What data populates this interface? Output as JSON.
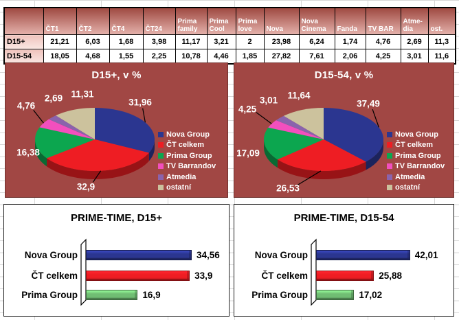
{
  "table": {
    "corner_label": "",
    "columns": [
      "ČT1",
      "ČT2",
      "ČT4",
      "ČT24",
      "Prima family",
      "Prima Cool",
      "Prima love",
      "Nova",
      "Nova Cinema",
      "Fanda",
      "TV BAR",
      "Atme-dia",
      "ost."
    ],
    "rows": [
      {
        "label": "D15+",
        "values": [
          "21,21",
          "6,03",
          "1,68",
          "3,98",
          "11,17",
          "3,21",
          "2",
          "23,98",
          "6,24",
          "1,74",
          "4,76",
          "2,69",
          "11,3"
        ]
      },
      {
        "label": "D15-54",
        "values": [
          "18,05",
          "4,68",
          "1,55",
          "2,25",
          "10,78",
          "4,46",
          "1,85",
          "27,82",
          "7,61",
          "2,06",
          "4,25",
          "3,01",
          "11,6"
        ]
      }
    ]
  },
  "colors": {
    "nova_group": "#2B3690",
    "ct_celkem": "#EE1D23",
    "prima_group_pie": "#0CA64F",
    "prima_group_bar": "#70BE73",
    "tv_barrandov": "#F24FBE",
    "atmedia": "#8A63AC",
    "ostatni": "#CCC29D",
    "pie_panel_bg": "#A14744",
    "table_header_top": "#9F4A42",
    "table_header_bottom": "#E4B1AB"
  },
  "chart_data": [
    {
      "type": "pie",
      "title": "D15+, v %",
      "legend_position": "right",
      "labels": [
        "Nova Group",
        "ČT celkem",
        "Prima Group",
        "TV Barrandov",
        "Atmedia",
        "ostatní"
      ],
      "values": [
        31.96,
        32.9,
        16.38,
        4.76,
        2.69,
        11.31
      ],
      "value_labels": [
        "31,96",
        "32,9",
        "16,38",
        "4,76",
        "2,69",
        "11,31"
      ]
    },
    {
      "type": "pie",
      "title": "D15-54, v %",
      "legend_position": "right",
      "labels": [
        "Nova Group",
        "ČT celkem",
        "Prima Group",
        "TV Barrandov",
        "Atmedia",
        "ostatní"
      ],
      "values": [
        37.49,
        26.53,
        17.09,
        4.25,
        3.01,
        11.64
      ],
      "value_labels": [
        "37,49",
        "26,53",
        "17,09",
        "4,25",
        "3,01",
        "11,64"
      ]
    },
    {
      "type": "bar",
      "title": "PRIME-TIME, D15+",
      "orientation": "horizontal",
      "grid": false,
      "categories": [
        "Nova Group",
        "ČT celkem",
        "Prima Group"
      ],
      "values": [
        34.56,
        33.9,
        16.9
      ],
      "value_labels": [
        "34,56",
        "33,9",
        "16,9"
      ],
      "xlim": [
        0,
        46
      ]
    },
    {
      "type": "bar",
      "title": "PRIME-TIME, D15-54",
      "orientation": "horizontal",
      "grid": false,
      "categories": [
        "Nova Group",
        "ČT celkem",
        "Prima Group"
      ],
      "values": [
        42.01,
        25.88,
        17.02
      ],
      "value_labels": [
        "42,01",
        "25,88",
        "17,02"
      ],
      "xlim": [
        0,
        63
      ]
    }
  ]
}
